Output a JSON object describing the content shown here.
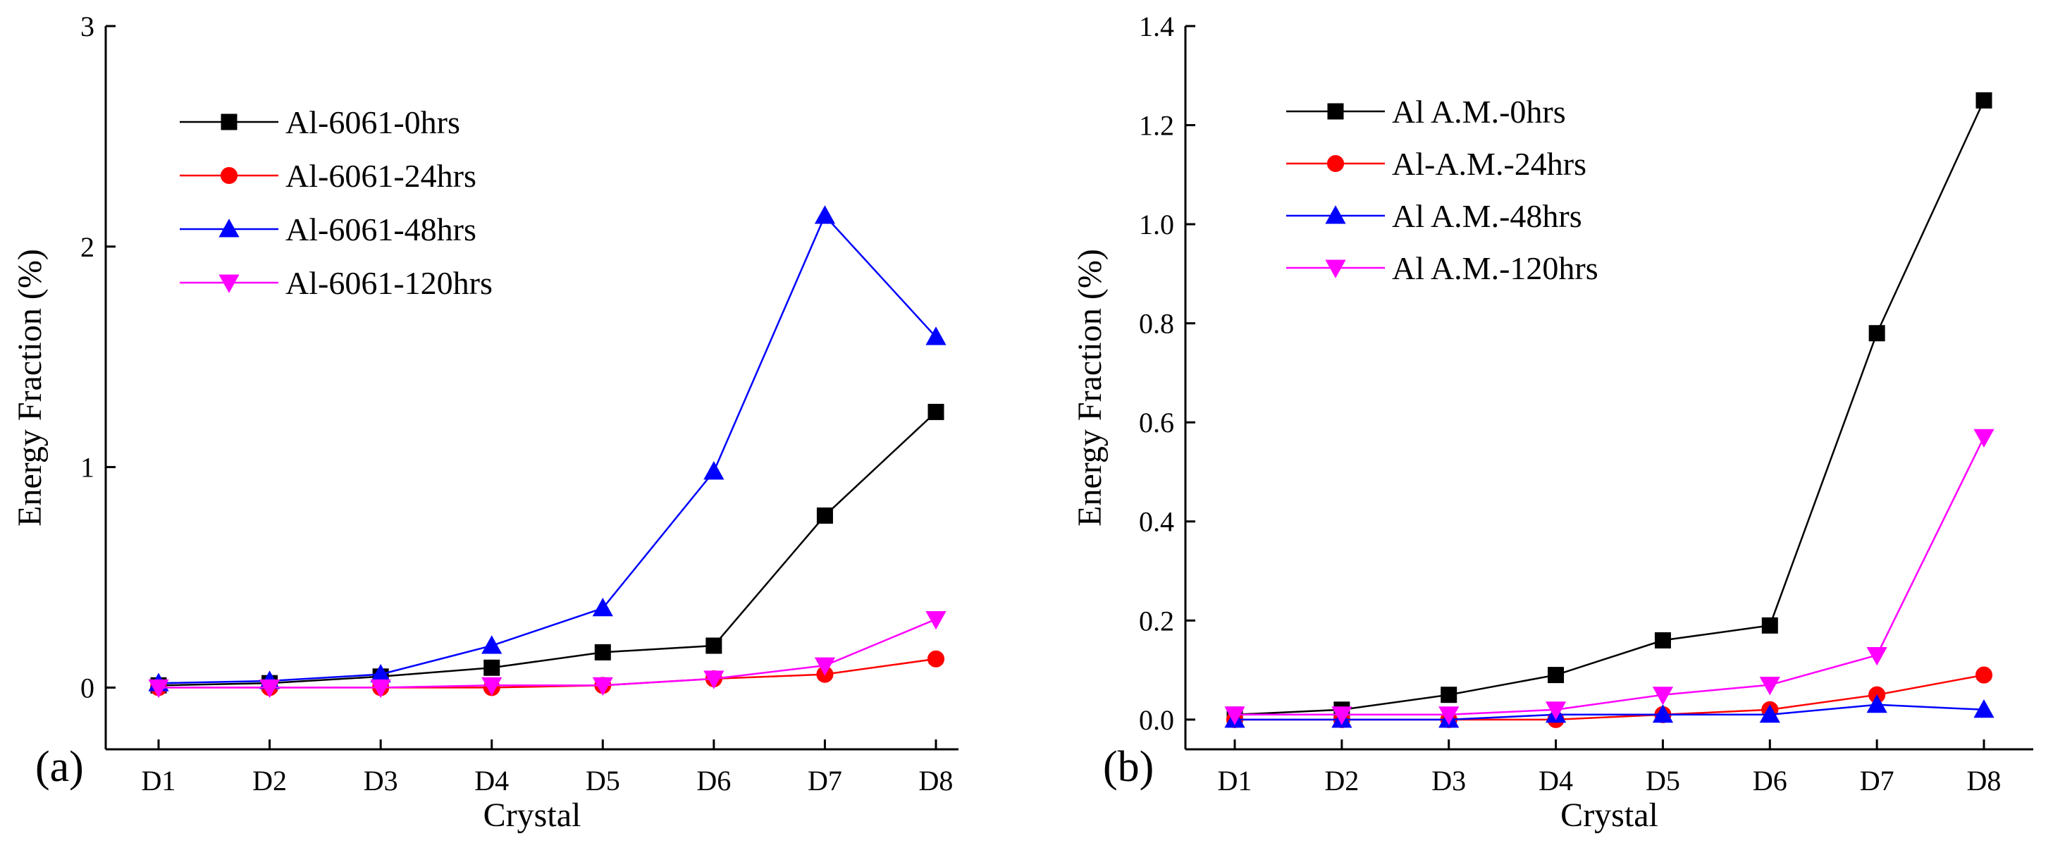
{
  "chart_data": [
    {
      "type": "line",
      "panel_label": "(a)",
      "xlabel": "Crystal",
      "ylabel": "Energy Fraction (%)",
      "categories": [
        "D1",
        "D2",
        "D3",
        "D4",
        "D5",
        "D6",
        "D7",
        "D8"
      ],
      "ylim": [
        -0.28,
        3
      ],
      "yticks": [
        0,
        1,
        2,
        3
      ],
      "ytick_labels": [
        "0",
        "1",
        "2",
        "3"
      ],
      "grid": false,
      "legend_position": "top-left",
      "series": [
        {
          "name": "Al-6061-0hrs",
          "color": "#000000",
          "marker": "square",
          "values": [
            0.01,
            0.02,
            0.05,
            0.09,
            0.16,
            0.19,
            0.78,
            1.25
          ]
        },
        {
          "name": "Al-6061-24hrs",
          "color": "#ff0000",
          "marker": "circle",
          "values": [
            0.0,
            0.0,
            0.0,
            0.0,
            0.01,
            0.04,
            0.06,
            0.13
          ]
        },
        {
          "name": "Al-6061-48hrs",
          "color": "#0000ff",
          "marker": "triangle-up",
          "values": [
            0.02,
            0.03,
            0.06,
            0.19,
            0.36,
            0.98,
            2.14,
            1.59
          ]
        },
        {
          "name": "Al-6061-120hrs",
          "color": "#ff00ff",
          "marker": "triangle-down",
          "values": [
            0.0,
            0.0,
            0.0,
            0.01,
            0.01,
            0.04,
            0.1,
            0.31
          ]
        }
      ]
    },
    {
      "type": "line",
      "panel_label": "(b)",
      "xlabel": "Crystal",
      "ylabel": "Energy Fraction (%)",
      "categories": [
        "D1",
        "D2",
        "D3",
        "D4",
        "D5",
        "D6",
        "D7",
        "D8"
      ],
      "ylim": [
        -0.06,
        1.4
      ],
      "yticks": [
        0.0,
        0.2,
        0.4,
        0.6,
        0.8,
        1.0,
        1.2,
        1.4
      ],
      "ytick_labels": [
        "0.0",
        "0.2",
        "0.4",
        "0.6",
        "0.8",
        "1.0",
        "1.2",
        "1.4"
      ],
      "grid": false,
      "legend_position": "top-left",
      "series": [
        {
          "name": "Al A.M.-0hrs",
          "color": "#000000",
          "marker": "square",
          "values": [
            0.01,
            0.02,
            0.05,
            0.09,
            0.16,
            0.19,
            0.78,
            1.25
          ]
        },
        {
          "name": "Al-A.M.-24hrs",
          "color": "#ff0000",
          "marker": "circle",
          "values": [
            0.0,
            0.0,
            0.0,
            0.0,
            0.01,
            0.02,
            0.05,
            0.09
          ]
        },
        {
          "name": "Al A.M.-48hrs",
          "color": "#0000ff",
          "marker": "triangle-up",
          "values": [
            0.0,
            0.0,
            0.0,
            0.01,
            0.01,
            0.01,
            0.03,
            0.02
          ]
        },
        {
          "name": "Al A.M.-120hrs",
          "color": "#ff00ff",
          "marker": "triangle-down",
          "values": [
            0.01,
            0.01,
            0.01,
            0.02,
            0.05,
            0.07,
            0.13,
            0.57
          ]
        }
      ]
    }
  ]
}
